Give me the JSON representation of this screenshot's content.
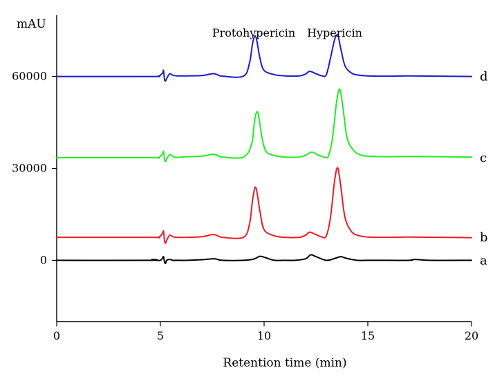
{
  "chart_data": {
    "type": "line",
    "title": "",
    "xlabel": "Retention time (min)",
    "ylabel": "mAU",
    "xlim": [
      0,
      20
    ],
    "ylim": [
      -20000,
      80000
    ],
    "x_ticks": [
      0,
      5,
      10,
      15,
      20
    ],
    "y_ticks": [
      0,
      30000,
      60000
    ],
    "grid": false,
    "legend": "none",
    "annotations": [
      {
        "text": "Protohypericin",
        "x": 9.5,
        "y": 78000
      },
      {
        "text": "Hypericin",
        "x": 13.4,
        "y": 78000
      }
    ],
    "series": [
      {
        "label": "a",
        "color": "#000000",
        "baseline": 0,
        "x": [
          0,
          4.5,
          4.6,
          4.8,
          5.0,
          5.1,
          5.15,
          5.2,
          5.25,
          5.3,
          5.45,
          5.6,
          5.8,
          6.3,
          7.0,
          7.5,
          7.7,
          8.0,
          9.0,
          9.5,
          9.8,
          10.1,
          10.5,
          11.0,
          11.5,
          12.0,
          12.25,
          12.5,
          13.0,
          13.4,
          13.7,
          14.0,
          14.5,
          15.0,
          16.0,
          17.0,
          17.3,
          18.0,
          20.0
        ],
        "y": [
          0,
          0,
          300,
          0,
          0,
          700,
          1200,
          -600,
          -1000,
          0,
          300,
          0,
          0,
          0,
          200,
          500,
          400,
          0,
          0,
          400,
          1300,
          800,
          0,
          0,
          0,
          500,
          1800,
          1200,
          0,
          600,
          1200,
          600,
          0,
          0,
          0,
          0,
          300,
          0,
          0
        ]
      },
      {
        "label": "b",
        "color": "#ee1c24",
        "baseline": 7500,
        "x": [
          0,
          4.5,
          4.9,
          5.1,
          5.15,
          5.2,
          5.25,
          5.3,
          5.45,
          5.6,
          5.8,
          6.3,
          7.0,
          7.5,
          7.7,
          8.0,
          9.0,
          9.3,
          9.45,
          9.6,
          9.8,
          10.0,
          10.5,
          11.0,
          11.7,
          12.0,
          12.2,
          12.5,
          12.8,
          13.0,
          13.2,
          13.4,
          13.55,
          13.7,
          13.9,
          14.2,
          14.5,
          15.0,
          16.0,
          17.0,
          20.0
        ],
        "y": [
          7500,
          7500,
          7500,
          8800,
          9500,
          6200,
          5600,
          6500,
          8200,
          7700,
          7500,
          7500,
          7700,
          8400,
          8200,
          7500,
          7500,
          12000,
          20000,
          23800,
          16000,
          10000,
          8000,
          7500,
          7500,
          8200,
          9200,
          8400,
          7600,
          8000,
          14000,
          26000,
          30200,
          24000,
          14000,
          9500,
          8200,
          7600,
          7500,
          7600,
          7400
        ]
      },
      {
        "label": "c",
        "color": "#22ee22",
        "baseline": 33500,
        "x": [
          0,
          4.5,
          4.9,
          5.1,
          5.15,
          5.2,
          5.25,
          5.3,
          5.45,
          5.6,
          5.8,
          6.3,
          7.0,
          7.5,
          7.7,
          8.0,
          9.0,
          9.4,
          9.55,
          9.7,
          9.9,
          10.1,
          10.5,
          11.0,
          11.7,
          12.0,
          12.3,
          12.6,
          12.9,
          13.1,
          13.3,
          13.5,
          13.65,
          13.8,
          14.0,
          14.3,
          14.6,
          15.0,
          16.0,
          17.0,
          20.0
        ],
        "y": [
          33500,
          33500,
          33500,
          34800,
          35500,
          32800,
          32300,
          33000,
          34500,
          33900,
          33600,
          33800,
          34000,
          34600,
          34400,
          33700,
          33700,
          38000,
          46000,
          48200,
          40000,
          35500,
          34200,
          33700,
          33700,
          34300,
          35300,
          34400,
          33700,
          34000,
          40000,
          52000,
          55800,
          50000,
          40000,
          36000,
          34500,
          34000,
          33800,
          33900,
          33700
        ]
      },
      {
        "label": "d",
        "color": "#1c1ccc",
        "baseline": 60000,
        "x": [
          0,
          4.5,
          4.9,
          5.1,
          5.15,
          5.2,
          5.25,
          5.3,
          5.45,
          5.6,
          5.8,
          6.3,
          7.0,
          7.5,
          7.7,
          8.0,
          9.0,
          9.3,
          9.45,
          9.6,
          9.8,
          10.0,
          10.5,
          11.0,
          11.7,
          12.0,
          12.2,
          12.5,
          12.8,
          13.0,
          13.2,
          13.4,
          13.55,
          13.7,
          13.9,
          14.2,
          14.5,
          15.0,
          16.0,
          17.0,
          20.0
        ],
        "y": [
          60000,
          60000,
          60100,
          61100,
          62000,
          58900,
          58600,
          59300,
          60900,
          60400,
          60200,
          60200,
          60300,
          60900,
          60700,
          60100,
          60100,
          64500,
          71000,
          73000,
          66000,
          62000,
          60600,
          60200,
          60200,
          60800,
          61700,
          60900,
          60200,
          60600,
          66000,
          72000,
          73500,
          69000,
          63500,
          61200,
          60500,
          60200,
          60100,
          60200,
          60000
        ]
      }
    ]
  }
}
